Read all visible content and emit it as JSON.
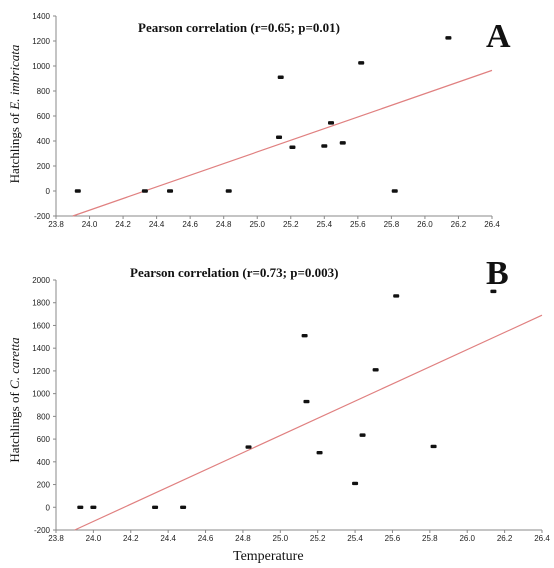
{
  "xlabel": "Temperature",
  "chart_data": [
    {
      "type": "scatter",
      "panel": "A",
      "title": "Pearson correlation (r=0.65; p=0.01)",
      "ylabel_prefix": "Hatchlings of ",
      "ylabel_species": "E. imbricata",
      "xlim": [
        23.8,
        26.4
      ],
      "ylim": [
        -200,
        1400
      ],
      "xticks": [
        "23.8",
        "24.0",
        "24.2",
        "24.4",
        "24.6",
        "24.8",
        "25.0",
        "25.2",
        "25.4",
        "25.6",
        "25.8",
        "26.0",
        "26.2",
        "26.4"
      ],
      "yticks": [
        "-200",
        "0",
        "200",
        "400",
        "600",
        "800",
        "1000",
        "1200",
        "1400"
      ],
      "points": [
        {
          "x": 23.93,
          "y": 0
        },
        {
          "x": 24.33,
          "y": 0
        },
        {
          "x": 24.48,
          "y": 0
        },
        {
          "x": 24.83,
          "y": 0
        },
        {
          "x": 25.13,
          "y": 430
        },
        {
          "x": 25.14,
          "y": 910
        },
        {
          "x": 25.21,
          "y": 350
        },
        {
          "x": 25.4,
          "y": 360
        },
        {
          "x": 25.44,
          "y": 545
        },
        {
          "x": 25.51,
          "y": 385
        },
        {
          "x": 25.62,
          "y": 1025
        },
        {
          "x": 25.82,
          "y": 0
        },
        {
          "x": 26.14,
          "y": 1225
        }
      ],
      "fit_line": [
        {
          "x": 23.9,
          "y": -200
        },
        {
          "x": 26.4,
          "y": 965
        }
      ],
      "colors": {
        "points": "#111111",
        "fit": "#e08080",
        "axis": "#888888"
      }
    },
    {
      "type": "scatter",
      "panel": "B",
      "title": "Pearson correlation (r=0.73; p=0.003)",
      "ylabel_prefix": "Hatchlings of ",
      "ylabel_species": "C. caretta",
      "xlim": [
        23.8,
        26.4
      ],
      "ylim": [
        -200,
        2000
      ],
      "xticks": [
        "23.8",
        "24.0",
        "24.2",
        "24.4",
        "24.6",
        "24.8",
        "25.0",
        "25.2",
        "25.4",
        "25.6",
        "25.8",
        "26.0",
        "26.2",
        "26.4"
      ],
      "yticks": [
        "-200",
        "0",
        "200",
        "400",
        "600",
        "800",
        "1000",
        "1200",
        "1400",
        "1600",
        "1800",
        "2000"
      ],
      "points": [
        {
          "x": 23.93,
          "y": 0
        },
        {
          "x": 24.0,
          "y": 0
        },
        {
          "x": 24.33,
          "y": 0
        },
        {
          "x": 24.48,
          "y": 0
        },
        {
          "x": 24.83,
          "y": 530
        },
        {
          "x": 25.13,
          "y": 1510
        },
        {
          "x": 25.14,
          "y": 930
        },
        {
          "x": 25.21,
          "y": 480
        },
        {
          "x": 25.4,
          "y": 210
        },
        {
          "x": 25.44,
          "y": 635
        },
        {
          "x": 25.51,
          "y": 1210
        },
        {
          "x": 25.62,
          "y": 1860
        },
        {
          "x": 25.82,
          "y": 535
        },
        {
          "x": 26.14,
          "y": 1900
        }
      ],
      "fit_line": [
        {
          "x": 23.9,
          "y": -200
        },
        {
          "x": 26.4,
          "y": 1690
        }
      ],
      "colors": {
        "points": "#111111",
        "fit": "#e08080",
        "axis": "#888888"
      }
    }
  ]
}
